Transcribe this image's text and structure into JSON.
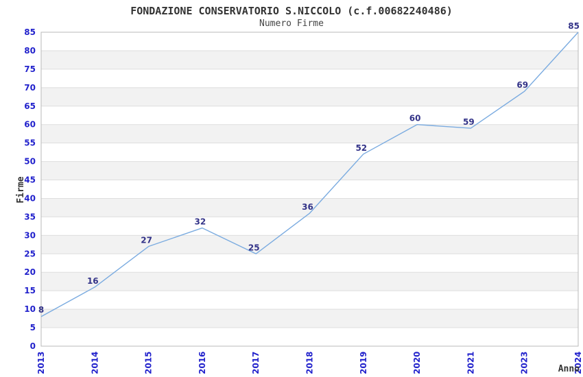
{
  "chart_data": {
    "type": "line",
    "title": "FONDAZIONE CONSERVATORIO S.NICCOLO (c.f.00682240486)",
    "subtitle": "Numero Firme",
    "categories": [
      "2013",
      "2014",
      "2015",
      "2016",
      "2017",
      "2018",
      "2019",
      "2020",
      "2021",
      "2023",
      "2024"
    ],
    "values": [
      8,
      16,
      27,
      32,
      25,
      36,
      52,
      60,
      59,
      69,
      85
    ],
    "xlabel": "Anno",
    "ylabel": "Firme",
    "ylim": [
      0,
      85
    ],
    "ytick_step": 5,
    "grid": "horizontal-alternating-bands",
    "legend": "none",
    "point_labels_visible": true,
    "x_tick_rotation_deg": -90
  },
  "colors": {
    "line": "#7AABE0",
    "tick_label": "#2222CC",
    "data_label": "#333388",
    "band_fill": "#F2F2F2",
    "grid_line": "#DEDEDE",
    "plot_border": "#B9B9B9",
    "title_color": "#333333",
    "axis_label_color": "#333333",
    "background": "#FFFFFF"
  }
}
